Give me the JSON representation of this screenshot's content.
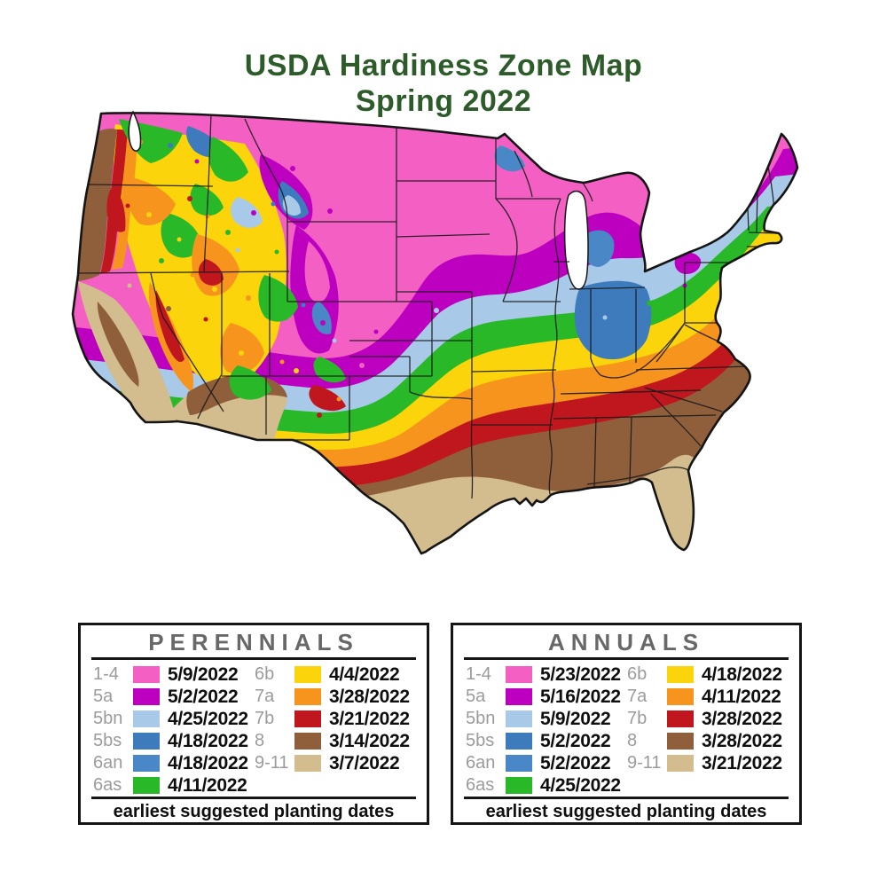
{
  "title": {
    "line1": "USDA Hardiness Zone Map",
    "line2": "Spring 2022",
    "color": "#2d5c2a"
  },
  "map": {
    "name": "usda-hardiness-zone-map",
    "description": "Contiguous United States colored by hardiness zone",
    "outline_color": "#151515"
  },
  "zones": [
    {
      "zone": "1-4",
      "color": "#f45fc4",
      "perennial": "5/9/2022",
      "annual": "5/23/2022"
    },
    {
      "zone": "5a",
      "color": "#bd00c0",
      "perennial": "5/2/2022",
      "annual": "5/16/2022"
    },
    {
      "zone": "5bn",
      "color": "#a9c9e8",
      "perennial": "4/25/2022",
      "annual": "5/9/2022"
    },
    {
      "zone": "5bs",
      "color": "#3d7bbd",
      "perennial": "4/18/2022",
      "annual": "5/2/2022"
    },
    {
      "zone": "6an",
      "color": "#4a87c6",
      "perennial": "4/18/2022",
      "annual": "5/2/2022"
    },
    {
      "zone": "6as",
      "color": "#28b828",
      "perennial": "4/11/2022",
      "annual": "4/25/2022"
    },
    {
      "zone": "6b",
      "color": "#fbd40b",
      "perennial": "4/4/2022",
      "annual": "4/18/2022"
    },
    {
      "zone": "7a",
      "color": "#f7941e",
      "perennial": "3/28/2022",
      "annual": "4/11/2022"
    },
    {
      "zone": "7b",
      "color": "#c0161d",
      "perennial": "3/21/2022",
      "annual": "3/28/2022"
    },
    {
      "zone": "8",
      "color": "#8f5f3c",
      "perennial": "3/14/2022",
      "annual": "3/28/2022"
    },
    {
      "zone": "9-11",
      "color": "#d3bc8d",
      "perennial": "3/7/2022",
      "annual": "3/21/2022"
    }
  ],
  "legends": [
    {
      "id": "perennials",
      "title": "PERENNIALS",
      "date_key": "perennial",
      "footer": "earliest suggested planting dates"
    },
    {
      "id": "annuals",
      "title": "ANNUALS",
      "date_key": "annual",
      "footer": "earliest suggested planting dates"
    }
  ]
}
